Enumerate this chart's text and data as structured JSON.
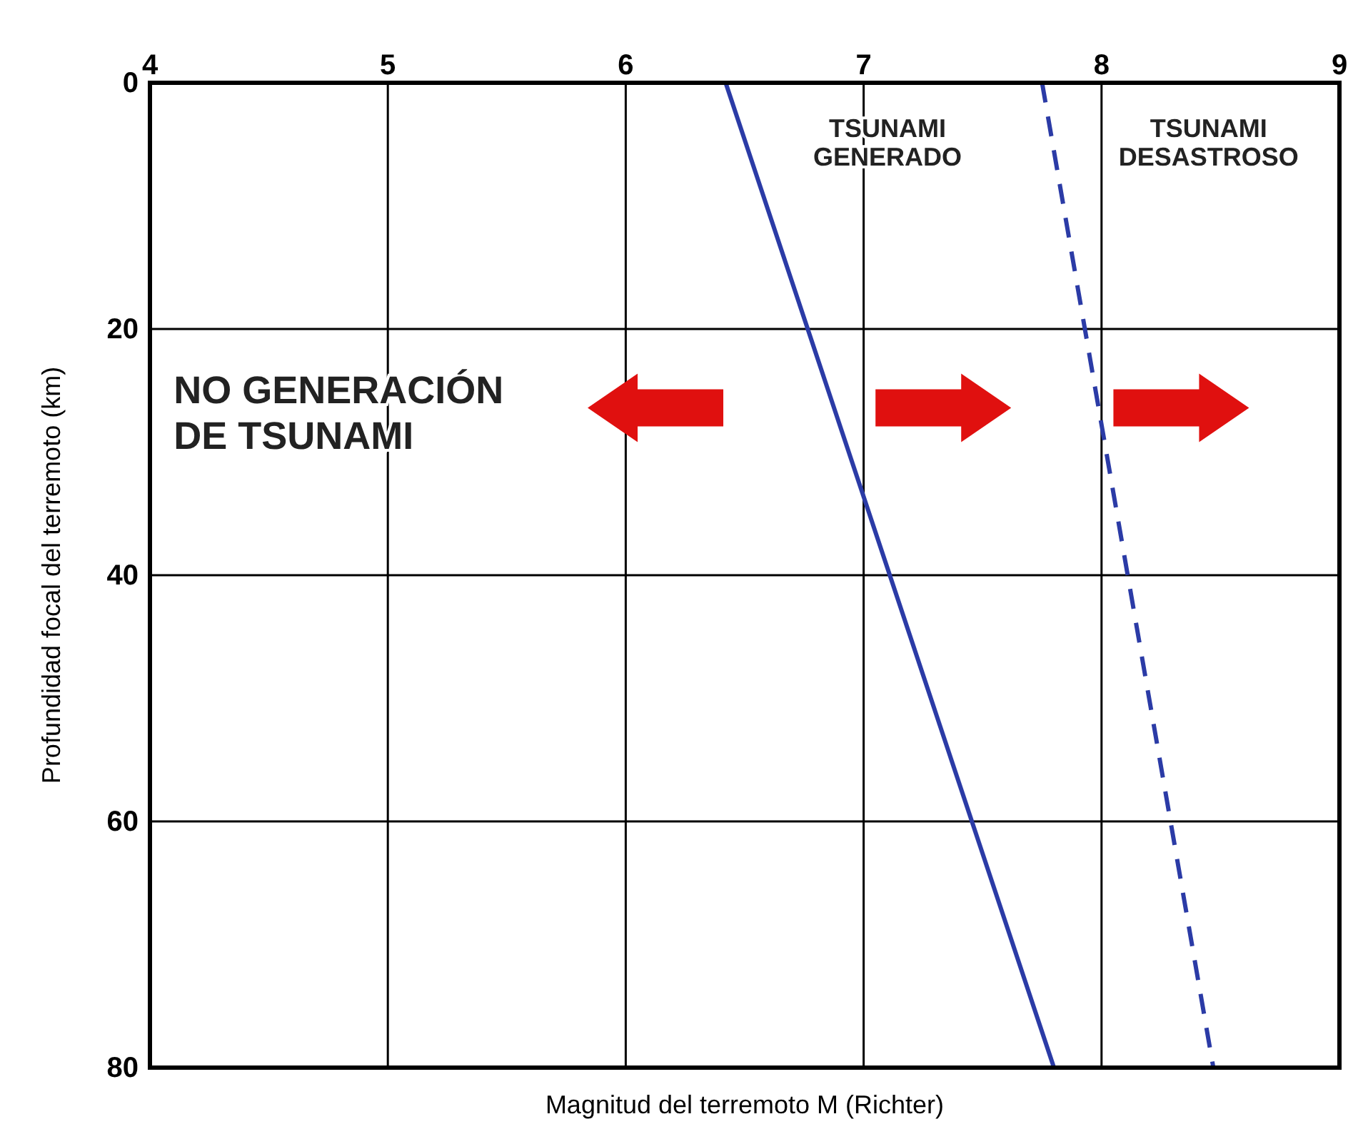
{
  "chart_data": {
    "type": "line",
    "xlabel": "Magnitud del terremoto M (Richter)",
    "ylabel": "Profundidad focal del terremoto (km)",
    "xlim": [
      4,
      9
    ],
    "xticks": [
      4,
      5,
      6,
      7,
      8,
      9
    ],
    "ylim": [
      80,
      0
    ],
    "yticks": [
      0,
      20,
      40,
      60,
      80
    ],
    "grid": true,
    "marker": "none",
    "series": [
      {
        "color": "#2b3ba6",
        "x": [
          6.42,
          7.8
        ],
        "values": [
          0,
          80
        ],
        "line_style": "solid"
      },
      {
        "color": "#2b3ba6",
        "x": [
          7.75,
          8.47
        ],
        "values": [
          0,
          80
        ],
        "line_style": "dashed"
      }
    ],
    "annotations": [
      "TSUNAMI\nGENERADO",
      "TSUNAMI\nDESASTROSO",
      "NO GENERACIÓN\nDE TSUNAMI"
    ]
  }
}
